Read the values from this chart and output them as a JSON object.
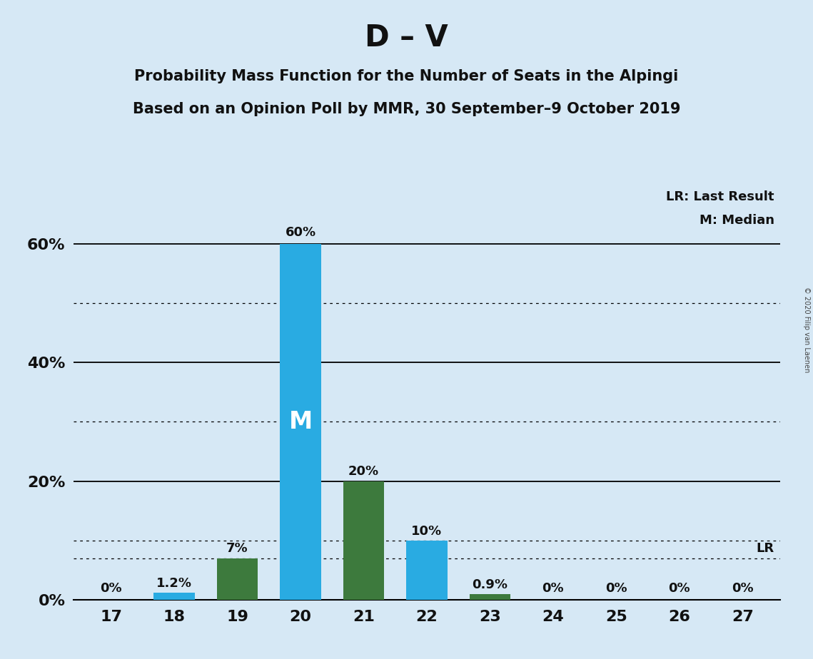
{
  "title": "D – V",
  "subtitle1": "Probability Mass Function for the Number of Seats in the Alpingi",
  "subtitle2": "Based on an Opinion Poll by MMR, 30 September–9 October 2019",
  "copyright": "© 2020 Filip van Laenen",
  "seats": [
    17,
    18,
    19,
    20,
    21,
    22,
    23,
    24,
    25,
    26,
    27
  ],
  "values": [
    0.0,
    1.2,
    7.0,
    60.0,
    20.0,
    10.0,
    0.9,
    0.0,
    0.0,
    0.0,
    0.0
  ],
  "labels": [
    "0%",
    "1.2%",
    "7%",
    "60%",
    "20%",
    "10%",
    "0.9%",
    "0%",
    "0%",
    "0%",
    "0%"
  ],
  "colors": [
    "#29ABE2",
    "#29ABE2",
    "#3D7A3D",
    "#29ABE2",
    "#3D7A3D",
    "#29ABE2",
    "#3D7A3D",
    "#29ABE2",
    "#29ABE2",
    "#29ABE2",
    "#29ABE2"
  ],
  "median_seat": 20,
  "lr_value": 7.0,
  "background_color": "#D6E8F5",
  "bar_color_blue": "#29ABE2",
  "bar_color_green": "#3D7A3D",
  "title_fontsize": 30,
  "subtitle_fontsize": 15,
  "ytick_labels": [
    "0%",
    "20%",
    "40%",
    "60%"
  ],
  "ytick_values": [
    0,
    20,
    40,
    60
  ],
  "ylim": [
    0,
    70
  ],
  "xlim": [
    16.4,
    27.6
  ],
  "legend_lr": "LR: Last Result",
  "legend_m": "M: Median"
}
